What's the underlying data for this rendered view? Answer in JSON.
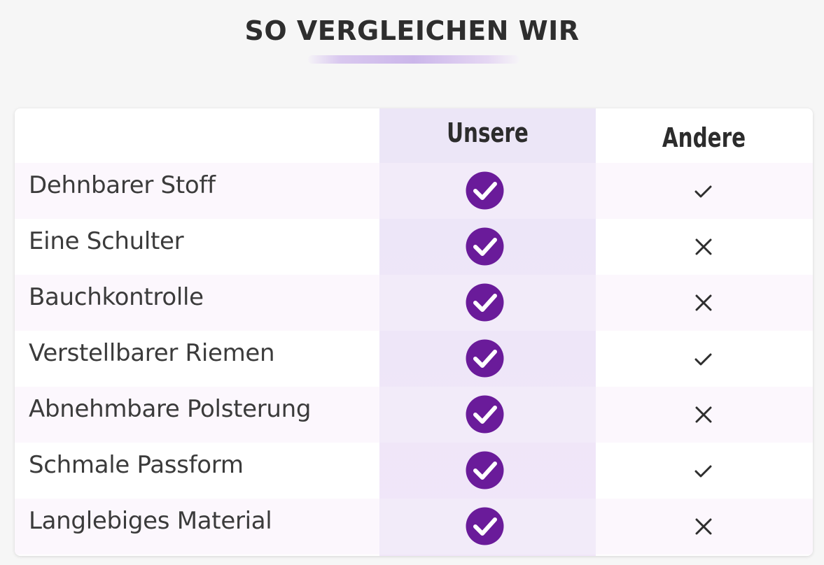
{
  "title": "SO VERGLEICHEN WIR",
  "columns": {
    "ours": "Unsere",
    "others": "Andere"
  },
  "colors": {
    "accent": "#6a1b9a",
    "highlight_column": "#eee6f8",
    "text": "#333333"
  },
  "rows": [
    {
      "feature": "Dehnbarer Stoff",
      "ours": "check-circle-icon",
      "others": "check-icon"
    },
    {
      "feature": "Eine Schulter",
      "ours": "check-circle-icon",
      "others": "cross-icon"
    },
    {
      "feature": "Bauchkontrolle",
      "ours": "check-circle-icon",
      "others": "cross-icon"
    },
    {
      "feature": "Verstellbarer Riemen",
      "ours": "check-circle-icon",
      "others": "check-icon"
    },
    {
      "feature": "Abnehmbare Polsterung",
      "ours": "check-circle-icon",
      "others": "cross-icon"
    },
    {
      "feature": "Schmale Passform",
      "ours": "check-circle-icon",
      "others": "check-icon"
    },
    {
      "feature": "Langlebiges Material",
      "ours": "check-circle-icon",
      "others": "cross-icon"
    }
  ]
}
